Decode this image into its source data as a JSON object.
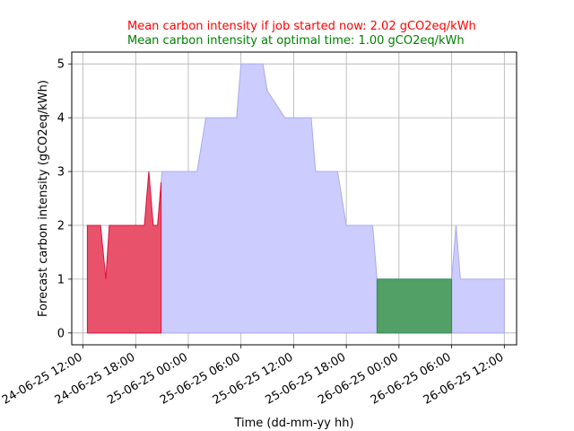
{
  "chart_data": {
    "type": "area",
    "annotations": [
      {
        "text": "Mean carbon intensity if job started now: 2.02 gCO2eq/kWh",
        "color": "#ff0000"
      },
      {
        "text": "Mean carbon intensity at optimal time: 1.00 gCO2eq/kWh",
        "color": "#008000"
      }
    ],
    "xlabel": "Time (dd-mm-yy hh)",
    "ylabel": "Forecast carbon intensity (gCO2eq/kWh)",
    "ylim": [
      -0.22,
      5.22
    ],
    "xlim": [
      -1.28,
      49.4
    ],
    "x_unit": "hours after 24-06-25 12:00",
    "x_ticks": [
      {
        "value": 0,
        "label": "24-06-25 12:00"
      },
      {
        "value": 6,
        "label": "24-06-25 18:00"
      },
      {
        "value": 12,
        "label": "25-06-25 00:00"
      },
      {
        "value": 18,
        "label": "25-06-25 06:00"
      },
      {
        "value": 24,
        "label": "25-06-25 12:00"
      },
      {
        "value": 30,
        "label": "25-06-25 18:00"
      },
      {
        "value": 36,
        "label": "26-06-25 00:00"
      },
      {
        "value": 42,
        "label": "26-06-25 06:00"
      },
      {
        "value": 48,
        "label": "26-06-25 12:00"
      }
    ],
    "y_ticks": [
      0,
      1,
      2,
      3,
      4,
      5
    ],
    "grid": true,
    "colors": {
      "forecast_fill": "#ccccff",
      "forecast_line": "#aaaaee",
      "now_fill": "#e8536b",
      "now_line": "#dc143c",
      "optimal_fill": "#52a065",
      "optimal_line": "#2e8b57"
    },
    "series": [
      {
        "role": "forecast",
        "x": [
          0.5,
          1.0,
          2.0,
          2.3,
          2.6,
          3.0,
          6.0,
          7.0,
          7.5,
          8.0,
          8.5,
          9.0,
          13.0,
          14.0,
          17.5,
          18.0,
          20.5,
          21.0,
          23.0,
          26.0,
          26.5,
          29.0,
          29.5,
          30.0,
          33.0,
          33.5,
          34.0,
          42.0,
          42.5,
          43.0,
          47.5,
          48.0
        ],
        "y": [
          2,
          2,
          2,
          1.5,
          1,
          2,
          2,
          2,
          3,
          2,
          2,
          3,
          3,
          4,
          4,
          5,
          5,
          4.5,
          4,
          4,
          3,
          3,
          2.5,
          2,
          2,
          1,
          1,
          1,
          2,
          1,
          1,
          1
        ]
      },
      {
        "role": "job_started_now",
        "x": [
          0.5,
          1.0,
          2.0,
          2.3,
          2.6,
          3.0,
          6.0,
          7.0,
          7.5,
          8.0,
          8.5,
          8.9,
          8.9
        ],
        "y": [
          2,
          2,
          2,
          1.5,
          1,
          2,
          2,
          2,
          3,
          2,
          2,
          2.8,
          2
        ]
      },
      {
        "role": "job_at_optimal_time",
        "x": [
          33.5,
          42.0
        ],
        "y": [
          1,
          1
        ]
      }
    ]
  }
}
